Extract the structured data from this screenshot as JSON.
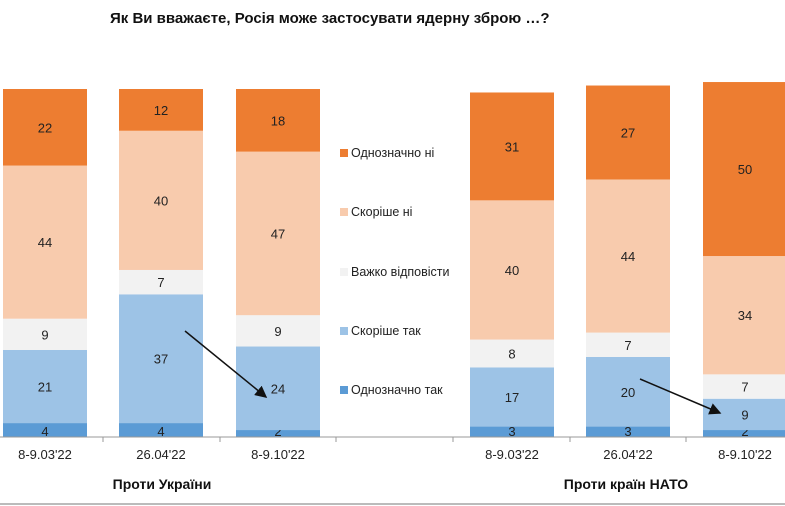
{
  "chart_data": {
    "type": "bar",
    "stacked": true,
    "title": "Як Ви вважаєте, Росія може застосувати ядерну зброю …?",
    "groups": [
      {
        "label": "Проти України",
        "categories": [
          "8-9.03'22",
          "26.04'22",
          "8-9.10'22"
        ]
      },
      {
        "label": "Проти країн НАТО",
        "categories": [
          "8-9.03'22",
          "26.04'22",
          "8-9.10'22"
        ]
      }
    ],
    "series": [
      {
        "name": "Однозначно так",
        "color": "#5B9BD5",
        "values": [
          4,
          4,
          2,
          3,
          3,
          2
        ]
      },
      {
        "name": "Скоріше так",
        "color": "#9DC3E6",
        "values": [
          21,
          37,
          24,
          17,
          20,
          9
        ]
      },
      {
        "name": "Важко відповісти",
        "color": "#F2F2F2",
        "values": [
          9,
          7,
          9,
          8,
          7,
          7
        ]
      },
      {
        "name": "Скоріше ні",
        "color": "#F8CBAD",
        "values": [
          44,
          40,
          47,
          40,
          44,
          34
        ]
      },
      {
        "name": "Однозначно ні",
        "color": "#ED7D31",
        "values": [
          22,
          12,
          18,
          31,
          27,
          50
        ]
      }
    ],
    "legend_order": [
      "Однозначно ні",
      "Скоріше ні",
      "Важко відповісти",
      "Скоріше так",
      "Однозначно так"
    ],
    "legend_position": "center",
    "ylim": [
      0,
      100
    ],
    "grid": false,
    "annotations": [
      "arrow from 26.04'22 to 8-9.10'22 (Проти України, Скоріше так)",
      "arrow from 26.04'22 to 8-9.10'22 (Проти країн НАТО, Скоріше так)"
    ]
  }
}
